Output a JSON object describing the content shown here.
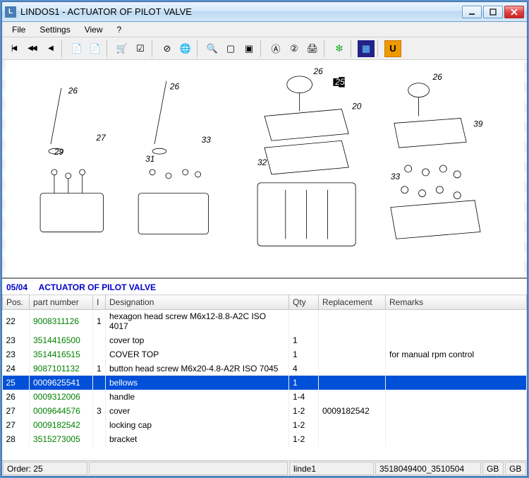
{
  "window": {
    "title": "LINDOS1 - ACTUATOR OF PILOT VALVE"
  },
  "menu": {
    "items": [
      "File",
      "Settings",
      "View",
      "?"
    ]
  },
  "section": {
    "code": "05/04",
    "title": "ACTUATOR OF PILOT VALVE"
  },
  "columns": {
    "pos": "Pos.",
    "part": "part number",
    "i": "I",
    "desig": "Designation",
    "qty": "Qty",
    "repl": "Replacement",
    "rem": "Remarks"
  },
  "rows": [
    {
      "pos": "22",
      "part": "9008311126",
      "i": "1",
      "desig": "hexagon head screw M6x12-8.8-A2C  ISO 4017",
      "qty": "",
      "repl": "",
      "rem": ""
    },
    {
      "pos": "23",
      "part": "3514416500",
      "i": "",
      "desig": "cover top",
      "qty": "1",
      "repl": "",
      "rem": ""
    },
    {
      "pos": "23",
      "part": "3514416515",
      "i": "",
      "desig": "COVER TOP",
      "qty": "1",
      "repl": "",
      "rem": "for manual rpm control"
    },
    {
      "pos": "24",
      "part": "9087101132",
      "i": "1",
      "desig": "button head screw M6x20-4.8-A2R  ISO 7045",
      "qty": "4",
      "repl": "",
      "rem": ""
    },
    {
      "pos": "25",
      "part": "0009625541",
      "i": "",
      "desig": "bellows",
      "qty": "1",
      "repl": "",
      "rem": "",
      "selected": true
    },
    {
      "pos": "26",
      "part": "0009312006",
      "i": "",
      "desig": "handle",
      "qty": "1-4",
      "repl": "",
      "rem": ""
    },
    {
      "pos": "27",
      "part": "0009644576",
      "i": "3",
      "desig": "cover",
      "qty": "1-2",
      "repl": "0009182542",
      "rem": ""
    },
    {
      "pos": "27",
      "part": "0009182542",
      "i": "",
      "desig": "locking cap",
      "qty": "1-2",
      "repl": "",
      "rem": ""
    },
    {
      "pos": "28",
      "part": "3515273005",
      "i": "",
      "desig": "bracket",
      "qty": "1-2",
      "repl": "",
      "rem": ""
    }
  ],
  "status": {
    "order": "Order: 25",
    "user": "linde1",
    "code": "3518049400_3510504",
    "lang1": "GB",
    "lang2": "GB"
  },
  "toolbar_icons": [
    "nav-first",
    "nav-rewind",
    "nav-back",
    "sep",
    "doc-a",
    "doc-b",
    "sep",
    "cart",
    "check",
    "sep",
    "no-globe",
    "globe",
    "sep",
    "zoom",
    "page",
    "fit",
    "sep",
    "find-a",
    "find-2",
    "print",
    "sep",
    "green-doc",
    "sep",
    "blue-box",
    "sep",
    "u-box"
  ]
}
